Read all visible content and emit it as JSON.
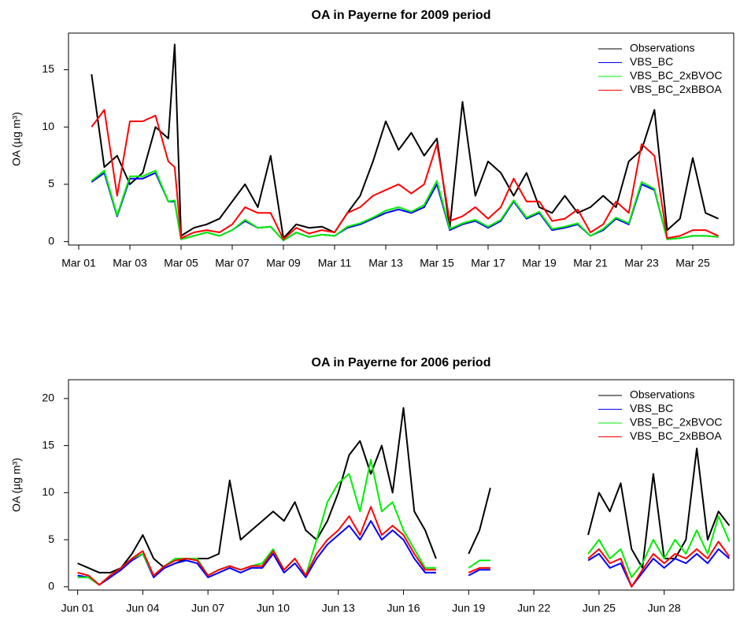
{
  "chart_data": [
    {
      "type": "line",
      "title": "OA in Payerne for 2009 period",
      "ylabel": "OA (µg m³)",
      "x": [
        1.5,
        2,
        2.5,
        3,
        3.5,
        4,
        4.5,
        4.75,
        5,
        5.5,
        6,
        6.5,
        7,
        7.5,
        8,
        8.5,
        9,
        9.5,
        10,
        10.5,
        11,
        11.5,
        12,
        12.5,
        13,
        13.5,
        14,
        14.5,
        15,
        15.5,
        16,
        16.5,
        17,
        17.5,
        18,
        18.5,
        19,
        19.5,
        20,
        20.5,
        21,
        21.5,
        22,
        22.5,
        23,
        23.5,
        24,
        24.5,
        25,
        25.5,
        26
      ],
      "xlim": [
        0.6,
        26.6
      ],
      "xticks": [
        {
          "value": 1,
          "label": "Mar 01"
        },
        {
          "value": 3,
          "label": "Mar 03"
        },
        {
          "value": 5,
          "label": "Mar 05"
        },
        {
          "value": 7,
          "label": "Mar 07"
        },
        {
          "value": 9,
          "label": "Mar 09"
        },
        {
          "value": 11,
          "label": "Mar 11"
        },
        {
          "value": 13,
          "label": "Mar 13"
        },
        {
          "value": 15,
          "label": "Mar 15"
        },
        {
          "value": 17,
          "label": "Mar 17"
        },
        {
          "value": 19,
          "label": "Mar 19"
        },
        {
          "value": 21,
          "label": "Mar 21"
        },
        {
          "value": 23,
          "label": "Mar 23"
        },
        {
          "value": 25,
          "label": "Mar 25"
        }
      ],
      "ylim": [
        -0.3,
        18.2
      ],
      "yticks": [
        0,
        5,
        10,
        15
      ],
      "legend": "topright",
      "series": [
        {
          "name": "Observations",
          "color": "#000000",
          "values": [
            14.6,
            6.5,
            7.5,
            5,
            6,
            10,
            9,
            17.2,
            0.5,
            1.2,
            1.5,
            2,
            3.5,
            5,
            3,
            7.5,
            0.3,
            1.5,
            1.2,
            1.3,
            0.8,
            2.5,
            4,
            7,
            10.5,
            8,
            9.5,
            7.5,
            9,
            1.2,
            12.2,
            4,
            7,
            6,
            4,
            6,
            3,
            2.5,
            4,
            2.5,
            3,
            4,
            3,
            7,
            8,
            11.5,
            1,
            2,
            7.3,
            2.5,
            2
          ]
        },
        {
          "name": "VBS_BC",
          "color": "#0000ff",
          "values": [
            5.2,
            6,
            2.2,
            5.5,
            5.5,
            6,
            3.5,
            3.5,
            0.2,
            0.5,
            0.8,
            0.5,
            1,
            1.8,
            1.2,
            1.3,
            0.1,
            0.8,
            0.4,
            0.6,
            0.5,
            1.2,
            1.5,
            2,
            2.5,
            2.8,
            2.5,
            3,
            5,
            1,
            1.5,
            1.8,
            1.2,
            1.8,
            3.5,
            2,
            2.5,
            1,
            1.2,
            1.5,
            0.5,
            1,
            2,
            1.5,
            5,
            4.5,
            0.2,
            0.3,
            0.5,
            0.5,
            0.4
          ]
        },
        {
          "name": "VBS_BC_2xBVOC",
          "color": "#00ee00",
          "values": [
            5.3,
            6.2,
            2.3,
            5.7,
            5.7,
            6.2,
            3.5,
            3.6,
            0.2,
            0.5,
            0.8,
            0.5,
            1,
            1.9,
            1.2,
            1.3,
            0.1,
            0.8,
            0.4,
            0.6,
            0.5,
            1.3,
            1.6,
            2.1,
            2.7,
            3,
            2.6,
            3.2,
            5.3,
            1.1,
            1.6,
            1.9,
            1.3,
            1.9,
            3.6,
            2.1,
            2.6,
            1.1,
            1.3,
            1.6,
            0.5,
            1.1,
            2.1,
            1.6,
            5.2,
            4.6,
            0.2,
            0.3,
            0.5,
            0.5,
            0.4
          ]
        },
        {
          "name": "VBS_BC_2xBBOA",
          "color": "#ff0000",
          "values": [
            10,
            11.5,
            4,
            10.5,
            10.5,
            11,
            7,
            6.5,
            0.3,
            0.8,
            1,
            0.8,
            1.5,
            3,
            2.5,
            2.5,
            0.2,
            1.2,
            0.7,
            1,
            0.8,
            2.5,
            3,
            4,
            4.5,
            5,
            4.2,
            5,
            8.5,
            1.8,
            2.2,
            3,
            2,
            3,
            5.5,
            3.5,
            3.5,
            1.8,
            2,
            2.8,
            0.8,
            1.5,
            3.5,
            2.5,
            8.5,
            7.5,
            0.3,
            0.5,
            1,
            1,
            0.5
          ]
        }
      ]
    },
    {
      "type": "line",
      "title": "OA in Payerne for 2006 period",
      "ylabel": "OA (µg m³)",
      "x": [
        1,
        1.5,
        2,
        2.5,
        3,
        3.5,
        4,
        4.5,
        5,
        5.5,
        6,
        6.5,
        7,
        7.5,
        8,
        8.5,
        9,
        9.5,
        10,
        10.5,
        11,
        11.5,
        12,
        12.5,
        13,
        13.5,
        14,
        14.5,
        15,
        15.5,
        16,
        16.5,
        17,
        17.5,
        18,
        18.5,
        19,
        19.5,
        20,
        20.5,
        21,
        21.5,
        22,
        22.5,
        23,
        23.5,
        24,
        24.5,
        25,
        25.5,
        26,
        26.5,
        27,
        27.5,
        28,
        28.5,
        29,
        29.5,
        30,
        30.5,
        31
      ],
      "xlim": [
        0.58,
        31.2
      ],
      "xticks": [
        {
          "value": 1,
          "label": "Jun 01"
        },
        {
          "value": 4,
          "label": "Jun 04"
        },
        {
          "value": 7,
          "label": "Jun 07"
        },
        {
          "value": 10,
          "label": "Jun 10"
        },
        {
          "value": 13,
          "label": "Jun 13"
        },
        {
          "value": 16,
          "label": "Jun 16"
        },
        {
          "value": 19,
          "label": "Jun 19"
        },
        {
          "value": 22,
          "label": "Jun 22"
        },
        {
          "value": 25,
          "label": "Jun 25"
        },
        {
          "value": 28,
          "label": "Jun 28"
        }
      ],
      "ylim": [
        -0.35,
        22
      ],
      "yticks": [
        0,
        5,
        10,
        15,
        20
      ],
      "legend": "topright",
      "series": [
        {
          "name": "Observations",
          "color": "#000000",
          "values": [
            2.5,
            2,
            1.5,
            1.5,
            2,
            3.5,
            5.5,
            3,
            2,
            2.5,
            3,
            3,
            3,
            3.5,
            11.3,
            5,
            6,
            7,
            8,
            7,
            9,
            6,
            5,
            7,
            10,
            14,
            15.5,
            12,
            15,
            10,
            19,
            8,
            6,
            3,
            null,
            null,
            3.5,
            6,
            10.5,
            null,
            null,
            null,
            null,
            null,
            null,
            null,
            null,
            5.5,
            10,
            8,
            11,
            4,
            2,
            12,
            3,
            3,
            5,
            14.7,
            5,
            8,
            6.5
          ]
        },
        {
          "name": "VBS_BC",
          "color": "#0000ff",
          "values": [
            1.2,
            1,
            0.2,
            1,
            1.8,
            2.8,
            3.5,
            1,
            2,
            2.5,
            2.8,
            2.5,
            1,
            1.5,
            2,
            1.5,
            2,
            2,
            3.5,
            1.5,
            2.5,
            1,
            3,
            4.5,
            5.5,
            6.5,
            5,
            7,
            5,
            6,
            5,
            3,
            1.5,
            1.5,
            null,
            null,
            1.2,
            1.8,
            1.8,
            null,
            null,
            null,
            null,
            null,
            null,
            null,
            null,
            2.8,
            3.5,
            2,
            2.5,
            0,
            1.5,
            3,
            2,
            3,
            2.5,
            3.5,
            2.5,
            4,
            3
          ]
        },
        {
          "name": "VBS_BC_2xBVOC",
          "color": "#00ee00",
          "values": [
            1,
            1,
            0.2,
            1.2,
            2,
            3,
            3.5,
            1.2,
            2.2,
            3,
            3,
            3,
            1.2,
            1.8,
            2.2,
            1.8,
            2.2,
            2.5,
            4,
            1.8,
            3,
            1.2,
            5,
            9,
            11,
            12,
            8,
            13.5,
            8,
            9,
            6,
            4,
            2,
            2,
            null,
            null,
            2,
            2.8,
            2.8,
            null,
            null,
            null,
            null,
            null,
            null,
            null,
            null,
            3.5,
            5,
            3,
            4,
            1,
            2.5,
            5,
            3,
            5,
            3.5,
            6,
            3.5,
            7.5,
            4.8
          ]
        },
        {
          "name": "VBS_BC_2xBBOA",
          "color": "#ff0000",
          "values": [
            1.5,
            1.2,
            0.2,
            1.2,
            2,
            3,
            3.8,
            1.2,
            2.2,
            2.8,
            3,
            2.8,
            1.2,
            1.8,
            2.2,
            1.8,
            2.2,
            2.2,
            3.8,
            1.8,
            3,
            1.2,
            3.5,
            5,
            6,
            7.5,
            5.5,
            8.5,
            5.5,
            6.5,
            5.5,
            3.5,
            1.8,
            1.8,
            null,
            null,
            1.5,
            2,
            2,
            null,
            null,
            null,
            null,
            null,
            null,
            null,
            null,
            3,
            4,
            2.5,
            3,
            0,
            1.8,
            3.5,
            2.5,
            3.5,
            3,
            4,
            3,
            4.8,
            3.2
          ]
        }
      ]
    }
  ]
}
